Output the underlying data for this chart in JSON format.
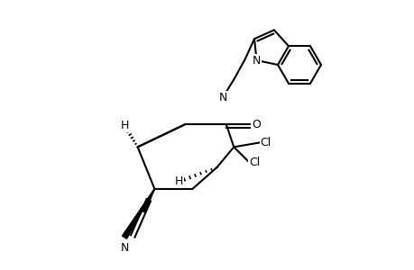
{
  "background_color": "#ffffff",
  "line_color": "#000000",
  "line_width": 1.5,
  "font_size": 9,
  "atoms": {
    "N_label": "N",
    "O_label": "O",
    "Cl1_label": "Cl",
    "Cl2_label": "Cl",
    "CN_label": "N",
    "H1_label": "H",
    "H2_label": "H",
    "N_indole_label": "N"
  }
}
